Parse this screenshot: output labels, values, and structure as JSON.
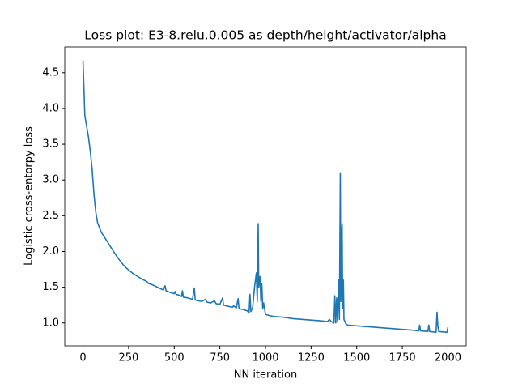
{
  "chart_data": {
    "type": "line",
    "title": "Loss plot: E3-8.relu.0.005 as depth/height/activator/alpha",
    "xlabel": "NN iteration",
    "ylabel": "Logistic cross-entorpy loss",
    "x": [
      0,
      10,
      20,
      30,
      40,
      50,
      60,
      70,
      80,
      100,
      125,
      150,
      175,
      200,
      225,
      250,
      275,
      300,
      325,
      350,
      360,
      375,
      400,
      425,
      440,
      450,
      455,
      475,
      500,
      505,
      510,
      525,
      540,
      545,
      550,
      575,
      600,
      610,
      615,
      650,
      670,
      680,
      700,
      720,
      730,
      750,
      765,
      770,
      800,
      820,
      825,
      840,
      850,
      855,
      875,
      900,
      910,
      915,
      920,
      930,
      940,
      950,
      955,
      960,
      963,
      970,
      975,
      980,
      985,
      990,
      1000,
      1025,
      1050,
      1100,
      1150,
      1200,
      1250,
      1300,
      1340,
      1350,
      1360,
      1375,
      1380,
      1385,
      1390,
      1395,
      1400,
      1405,
      1410,
      1413,
      1418,
      1420,
      1423,
      1427,
      1430,
      1440,
      1450,
      1500,
      1600,
      1700,
      1800,
      1840,
      1845,
      1850,
      1890,
      1895,
      1900,
      1935,
      1940,
      1945,
      1950,
      1990,
      1995,
      2000
    ],
    "series": [
      {
        "color": "#1f77b4",
        "values": [
          4.67,
          3.9,
          3.75,
          3.6,
          3.4,
          3.15,
          2.8,
          2.55,
          2.4,
          2.27,
          2.17,
          2.07,
          1.97,
          1.88,
          1.8,
          1.74,
          1.69,
          1.65,
          1.61,
          1.58,
          1.55,
          1.54,
          1.51,
          1.48,
          1.46,
          1.52,
          1.45,
          1.43,
          1.41,
          1.44,
          1.4,
          1.39,
          1.37,
          1.45,
          1.36,
          1.35,
          1.33,
          1.49,
          1.32,
          1.3,
          1.33,
          1.29,
          1.28,
          1.31,
          1.27,
          1.26,
          1.35,
          1.25,
          1.23,
          1.22,
          1.24,
          1.21,
          1.34,
          1.2,
          1.19,
          1.17,
          1.14,
          1.4,
          1.16,
          1.22,
          1.5,
          1.7,
          1.3,
          2.39,
          1.5,
          1.65,
          1.3,
          1.55,
          1.2,
          1.28,
          1.12,
          1.1,
          1.09,
          1.08,
          1.06,
          1.05,
          1.04,
          1.03,
          1.02,
          1.05,
          1.02,
          1.0,
          1.38,
          1.0,
          1.35,
          1.02,
          1.6,
          1.05,
          3.1,
          1.3,
          2.3,
          2.39,
          1.2,
          1.6,
          1.05,
          0.99,
          0.97,
          0.96,
          0.94,
          0.92,
          0.9,
          0.89,
          0.97,
          0.89,
          0.88,
          0.97,
          0.88,
          0.87,
          1.15,
          0.95,
          0.88,
          0.87,
          0.87,
          0.94
        ]
      }
    ],
    "xlim": [
      -100,
      2100
    ],
    "xticks": [
      0,
      250,
      500,
      750,
      1000,
      1250,
      1500,
      1750,
      2000
    ],
    "ylim": [
      0.68,
      4.86
    ],
    "yticks": [
      {
        "value": 1,
        "label": "1.0"
      },
      1.5,
      {
        "value": 2,
        "label": "2.0"
      },
      2.5,
      {
        "value": 3,
        "label": "3.0"
      },
      3.5,
      {
        "value": 4,
        "label": "4.0"
      },
      4.5
    ]
  }
}
